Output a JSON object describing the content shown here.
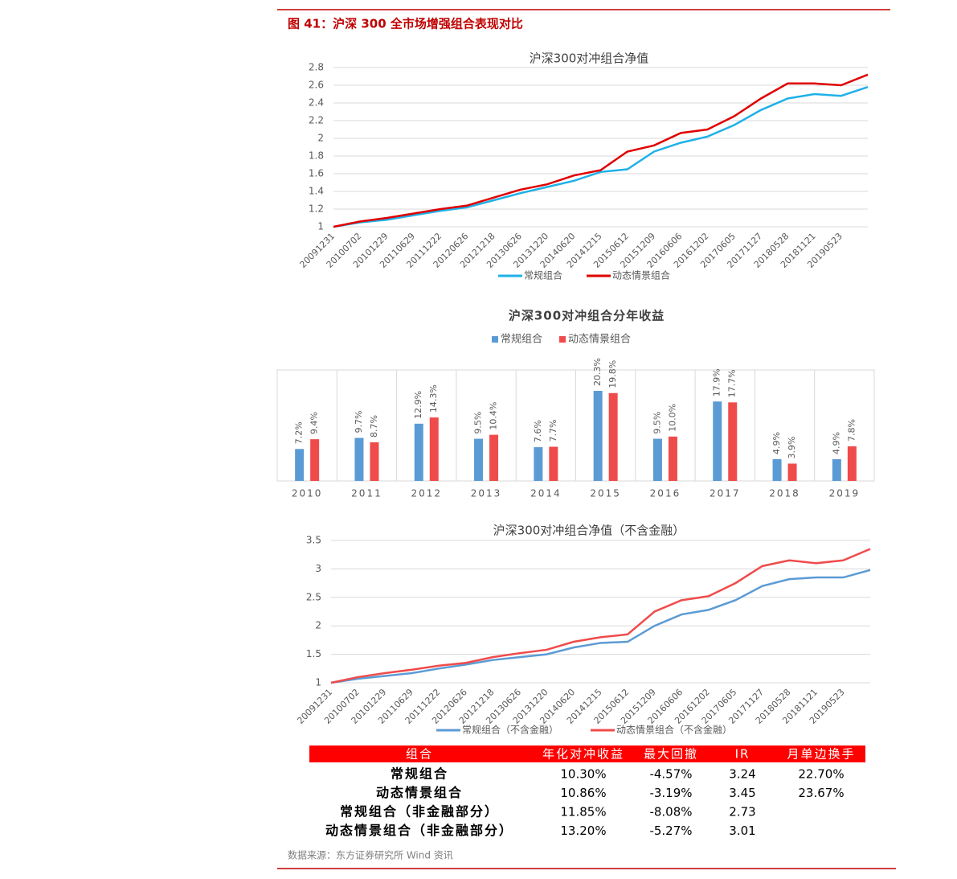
{
  "header": {
    "title": "图 41：沪深 300 全市场增强组合表现对比"
  },
  "chart_data": [
    {
      "type": "line",
      "title": "沪深300对冲组合净值",
      "categories": [
        "20091231",
        "20100702",
        "20101229",
        "20110629",
        "20111222",
        "20120626",
        "20121218",
        "20130626",
        "20131220",
        "20140620",
        "20141215",
        "20150612",
        "20151209",
        "20160606",
        "20161202",
        "20170605",
        "20171127",
        "20180528",
        "20181121",
        "20190523",
        null
      ],
      "series": [
        {
          "name": "常规组合",
          "color": "#1fb1e8",
          "values": [
            1.0,
            1.05,
            1.08,
            1.13,
            1.18,
            1.22,
            1.3,
            1.38,
            1.45,
            1.52,
            1.62,
            1.65,
            1.85,
            1.95,
            2.02,
            2.15,
            2.32,
            2.45,
            2.5,
            2.48,
            2.58
          ]
        },
        {
          "name": "动态情景组合",
          "color": "#e00000",
          "values": [
            1.0,
            1.06,
            1.1,
            1.15,
            1.2,
            1.24,
            1.33,
            1.42,
            1.48,
            1.58,
            1.64,
            1.85,
            1.92,
            2.06,
            2.1,
            2.25,
            2.45,
            2.62,
            2.62,
            2.6,
            2.72
          ]
        }
      ],
      "ylim": [
        1,
        2.8
      ],
      "yticks": [
        1,
        1.2,
        1.4,
        1.6,
        1.8,
        2,
        2.2,
        2.4,
        2.6,
        2.8
      ],
      "grid": true
    },
    {
      "type": "bar",
      "title": "沪深300对冲组合分年收益",
      "categories": [
        "2010",
        "2011",
        "2012",
        "2013",
        "2014",
        "2015",
        "2016",
        "2017",
        "2018",
        "2019"
      ],
      "series": [
        {
          "name": "常规组合",
          "color": "#5b9bd5",
          "values": [
            7.2,
            9.7,
            12.9,
            9.5,
            7.6,
            20.3,
            9.5,
            17.9,
            4.9,
            4.9
          ],
          "value_labels": [
            "7.2%",
            "9.7%",
            "12.9%",
            "9.5%",
            "7.6%",
            "20.3%",
            "9.5%",
            "17.9%",
            "4.9%",
            "4.9%"
          ]
        },
        {
          "name": "动态情景组合",
          "color": "#f04b4b",
          "values": [
            9.4,
            8.7,
            14.3,
            10.4,
            7.7,
            19.8,
            10,
            17.7,
            3.9,
            7.8
          ],
          "value_labels": [
            "9.4%",
            "8.7%",
            "14.3%",
            "10.4%",
            "7.7%",
            "19.8%",
            "10.0%",
            "17.7%",
            "3.9%",
            "7.8%"
          ]
        }
      ]
    },
    {
      "type": "line",
      "title": "沪深300对冲组合净值（不含金融）",
      "categories": [
        "20091231",
        "20100702",
        "20101229",
        "20110629",
        "20111222",
        "20120626",
        "20121218",
        "20130626",
        "20131220",
        "20140620",
        "20141215",
        "20150612",
        "20151209",
        "20160606",
        "20161202",
        "20170605",
        "20171127",
        "20180528",
        "20181121",
        "20190523",
        null
      ],
      "series": [
        {
          "name": "常规组合（不含金融）",
          "color": "#5b9bd5",
          "values": [
            1.0,
            1.07,
            1.12,
            1.17,
            1.25,
            1.32,
            1.4,
            1.45,
            1.5,
            1.62,
            1.7,
            1.72,
            2.0,
            2.2,
            2.28,
            2.45,
            2.7,
            2.82,
            2.85,
            2.85,
            2.98
          ]
        },
        {
          "name": "动态情景组合（不含金融）",
          "color": "#f04b4b",
          "values": [
            1.0,
            1.1,
            1.17,
            1.23,
            1.3,
            1.35,
            1.45,
            1.52,
            1.58,
            1.72,
            1.8,
            1.85,
            2.25,
            2.45,
            2.52,
            2.75,
            3.05,
            3.15,
            3.1,
            3.15,
            3.35
          ]
        }
      ],
      "ylim": [
        1,
        3.5
      ],
      "yticks": [
        1,
        1.5,
        2,
        2.5,
        3,
        3.5
      ],
      "grid": true
    }
  ],
  "table": {
    "header": [
      "组合",
      "年化对冲收益",
      "最大回撤",
      "IR",
      "月单边换手"
    ],
    "rows": [
      [
        "常规组合",
        "10.30%",
        "-4.57%",
        "3.24",
        "22.70%"
      ],
      [
        "动态情景组合",
        "10.86%",
        "-3.19%",
        "3.45",
        "23.67%"
      ],
      [
        "常规组合（非金融部分）",
        "11.85%",
        "-8.08%",
        "2.73"
      ],
      [
        "动态情景组合（非金融部分）",
        "13.20%",
        "-5.27%",
        "3.01"
      ]
    ]
  },
  "source": "数据来源：东方证券研究所 Wind 资讯"
}
